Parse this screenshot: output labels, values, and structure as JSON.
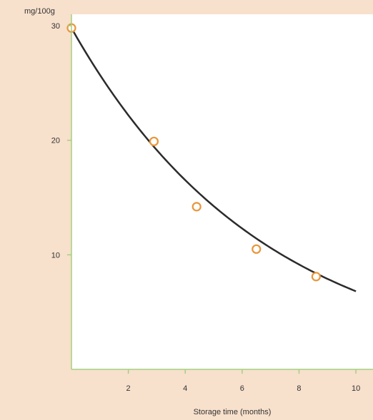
{
  "chart_data": {
    "type": "scatter",
    "title": "",
    "xlabel": "Storage time (months)",
    "ylabel": "mg/100g",
    "xlim": [
      0,
      10.6
    ],
    "ylim": [
      0,
      31
    ],
    "x_ticks": [
      {
        "value": 2,
        "label": "2"
      },
      {
        "value": 4,
        "label": "4"
      },
      {
        "value": 6,
        "label": "6"
      },
      {
        "value": 8,
        "label": "8"
      },
      {
        "value": 10,
        "label": "10"
      }
    ],
    "y_ticks": [
      {
        "value": 10,
        "label": "10"
      },
      {
        "value": 20,
        "label": "20"
      },
      {
        "value": 30,
        "label": "30"
      }
    ],
    "series": [
      {
        "points": [
          {
            "x": 0,
            "y": 29.8
          },
          {
            "x": 2.9,
            "y": 19.9
          },
          {
            "x": 4.4,
            "y": 14.2
          },
          {
            "x": 6.5,
            "y": 10.5
          },
          {
            "x": 8.6,
            "y": 8.1
          }
        ]
      }
    ],
    "trend_curve": {
      "model": "exponential",
      "a": 29.8,
      "k": 0.1475,
      "x_range": [
        0,
        10
      ]
    },
    "grid": false,
    "colors": {
      "background": "#f7e0cc",
      "plot_area": "#ffffff",
      "axis": "#a6cf7e",
      "curve": "#2b2b2b",
      "marker": "#e8963b"
    }
  }
}
